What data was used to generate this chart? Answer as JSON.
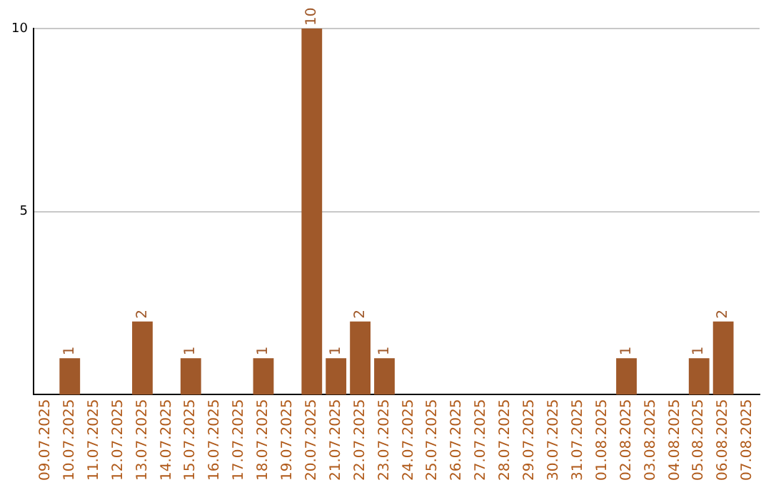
{
  "chart_data": {
    "type": "bar",
    "categories": [
      "09.07.2025",
      "10.07.2025",
      "11.07.2025",
      "12.07.2025",
      "13.07.2025",
      "14.07.2025",
      "15.07.2025",
      "16.07.2025",
      "17.07.2025",
      "18.07.2025",
      "19.07.2025",
      "20.07.2025",
      "21.07.2025",
      "22.07.2025",
      "23.07.2025",
      "24.07.2025",
      "25.07.2025",
      "26.07.2025",
      "27.07.2025",
      "28.07.2025",
      "29.07.2025",
      "30.07.2025",
      "31.07.2025",
      "01.08.2025",
      "02.08.2025",
      "03.08.2025",
      "04.08.2025",
      "05.08.2025",
      "06.08.2025",
      "07.08.2025"
    ],
    "values": [
      0,
      1,
      0,
      0,
      2,
      0,
      1,
      0,
      0,
      1,
      0,
      10,
      1,
      2,
      1,
      0,
      0,
      0,
      0,
      0,
      0,
      0,
      0,
      0,
      1,
      0,
      0,
      1,
      2,
      0
    ],
    "value_labels": [
      null,
      "1",
      null,
      null,
      "2",
      null,
      "1",
      null,
      null,
      "1",
      null,
      "10",
      "1",
      "2",
      "1",
      null,
      null,
      null,
      null,
      null,
      null,
      null,
      null,
      null,
      "1",
      null,
      null,
      "1",
      "2",
      null
    ],
    "color": "#a0592a",
    "ylim": [
      0,
      10
    ],
    "yticks": [
      5,
      10
    ],
    "grid": "y",
    "legend": false
  }
}
